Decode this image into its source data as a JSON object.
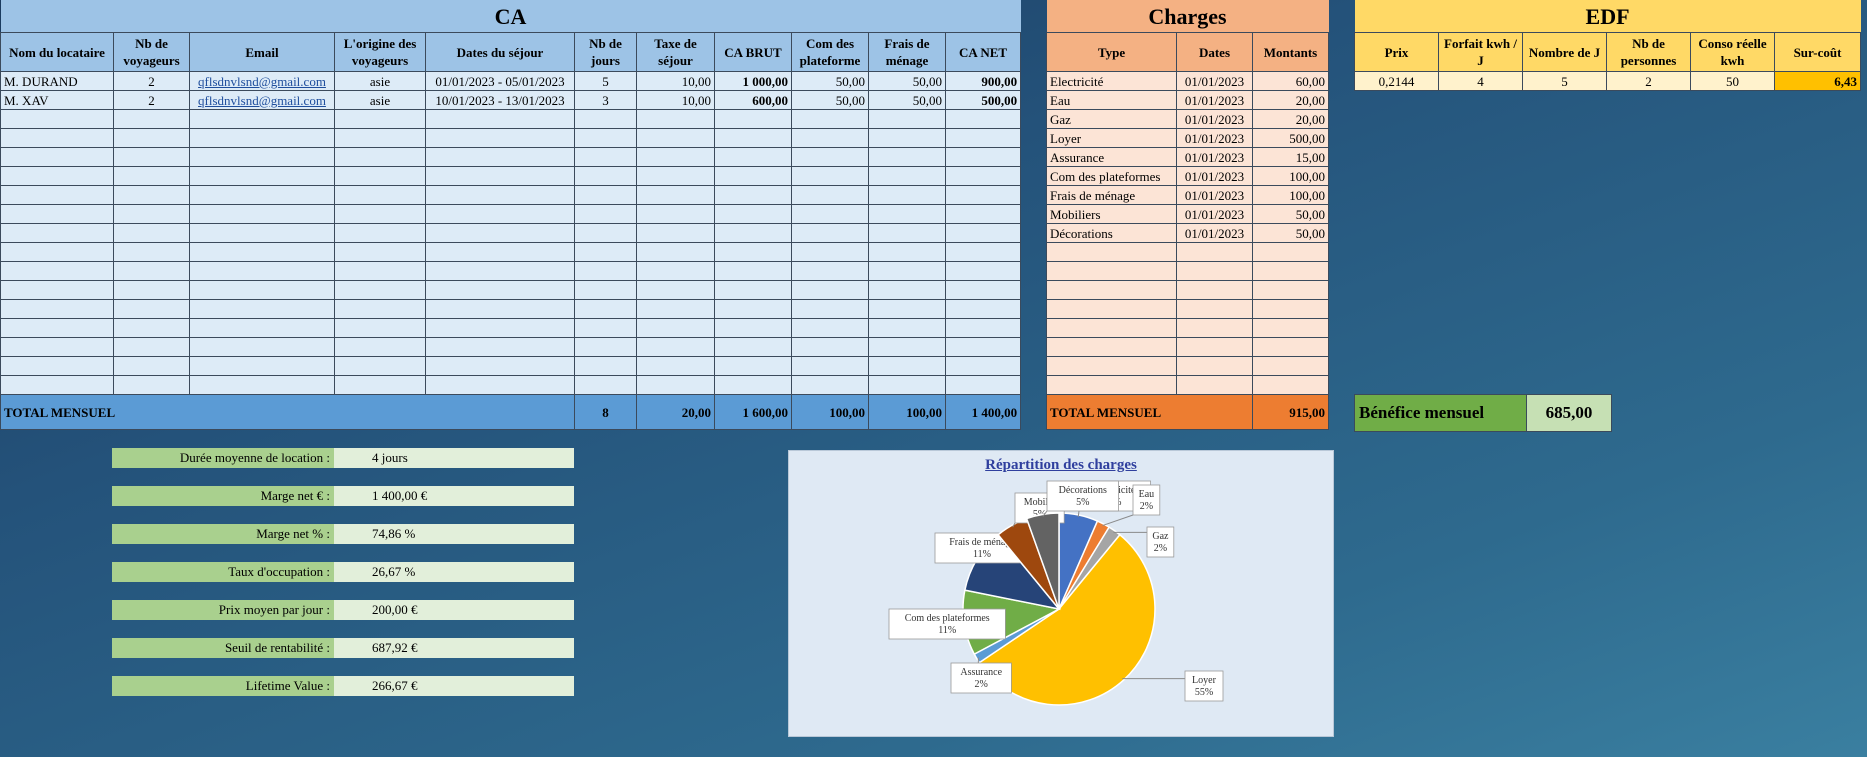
{
  "ca": {
    "title": "CA",
    "headers": [
      "Nom du locataire",
      "Nb de voyageurs",
      "Email",
      "L'origine des voyageurs",
      "Dates du séjour",
      "Nb de jours",
      "Taxe de séjour",
      "CA BRUT",
      "Com des plateforme",
      "Frais de ménage",
      "CA NET"
    ],
    "rows": [
      [
        "M. DURAND",
        "2",
        "qflsdnvlsnd@gmail.com",
        "asie",
        "01/01/2023 - 05/01/2023",
        "5",
        "10,00",
        "1 000,00",
        "50,00",
        "50,00",
        "900,00"
      ],
      [
        "M. XAV",
        "2",
        "qflsdnvlsnd@gmail.com",
        "asie",
        "10/01/2023 - 13/01/2023",
        "3",
        "10,00",
        "600,00",
        "50,00",
        "50,00",
        "500,00"
      ]
    ],
    "total_label": "TOTAL MENSUEL",
    "totals": {
      "nb_jours": "8",
      "taxe": "20,00",
      "ca_brut": "1 600,00",
      "com": "100,00",
      "menage": "100,00",
      "ca_net": "1 400,00"
    }
  },
  "charges": {
    "title": "Charges",
    "headers": [
      "Type",
      "Dates",
      "Montants"
    ],
    "rows": [
      [
        "Electricité",
        "01/01/2023",
        "60,00"
      ],
      [
        "Eau",
        "01/01/2023",
        "20,00"
      ],
      [
        "Gaz",
        "01/01/2023",
        "20,00"
      ],
      [
        "Loyer",
        "01/01/2023",
        "500,00"
      ],
      [
        "Assurance",
        "01/01/2023",
        "15,00"
      ],
      [
        "Com des plateformes",
        "01/01/2023",
        "100,00"
      ],
      [
        "Frais de ménage",
        "01/01/2023",
        "100,00"
      ],
      [
        "Mobiliers",
        "01/01/2023",
        "50,00"
      ],
      [
        "Décorations",
        "01/01/2023",
        "50,00"
      ]
    ],
    "total_label": "TOTAL MENSUEL",
    "total_value": "915,00"
  },
  "edf": {
    "title": "EDF",
    "headers": [
      "Prix",
      "Forfait kwh / J",
      "Nombre de J",
      "Nb de personnes",
      "Conso réelle kwh",
      "Sur-coût"
    ],
    "row": [
      "0,2144",
      "4",
      "5",
      "2",
      "50",
      "6,43"
    ]
  },
  "benefit": {
    "label": "Bénéfice mensuel",
    "value": "685,00"
  },
  "kpis": [
    {
      "label": "Durée moyenne de location :",
      "value": "4 jours"
    },
    {
      "label": "Marge net € :",
      "value": "1 400,00 €"
    },
    {
      "label": "Marge net % :",
      "value": "74,86 %"
    },
    {
      "label": "Taux d'occupation :",
      "value": "26,67 %"
    },
    {
      "label": "Prix moyen par jour :",
      "value": "200,00 €"
    },
    {
      "label": "Seuil de rentabilité :",
      "value": "687,92 €"
    },
    {
      "label": "Lifetime Value :",
      "value": "266,67 €"
    }
  ],
  "chart_data": {
    "type": "pie",
    "title": "Répartition des charges",
    "categories": [
      "Electricité",
      "Eau",
      "Gaz",
      "Loyer",
      "Assurance",
      "Com des plateformes",
      "Frais de ménage",
      "Mobiliers",
      "Décorations"
    ],
    "values": [
      60,
      20,
      20,
      500,
      15,
      100,
      100,
      50,
      50
    ],
    "labels": [
      "Electricité\n7%",
      "Eau\n2%",
      "Gaz\n2%",
      "Loyer\n55%",
      "Assurance\n2%",
      "Com des plateformes\n11%",
      "Frais de ménage\n11%",
      "Mobilie\n5%",
      "Décorations\n5%"
    ],
    "colors": [
      "#4472c4",
      "#ed7d31",
      "#a5a5a5",
      "#ffc000",
      "#5b9bd5",
      "#70ad47",
      "#264478",
      "#9e480e",
      "#636363"
    ]
  }
}
